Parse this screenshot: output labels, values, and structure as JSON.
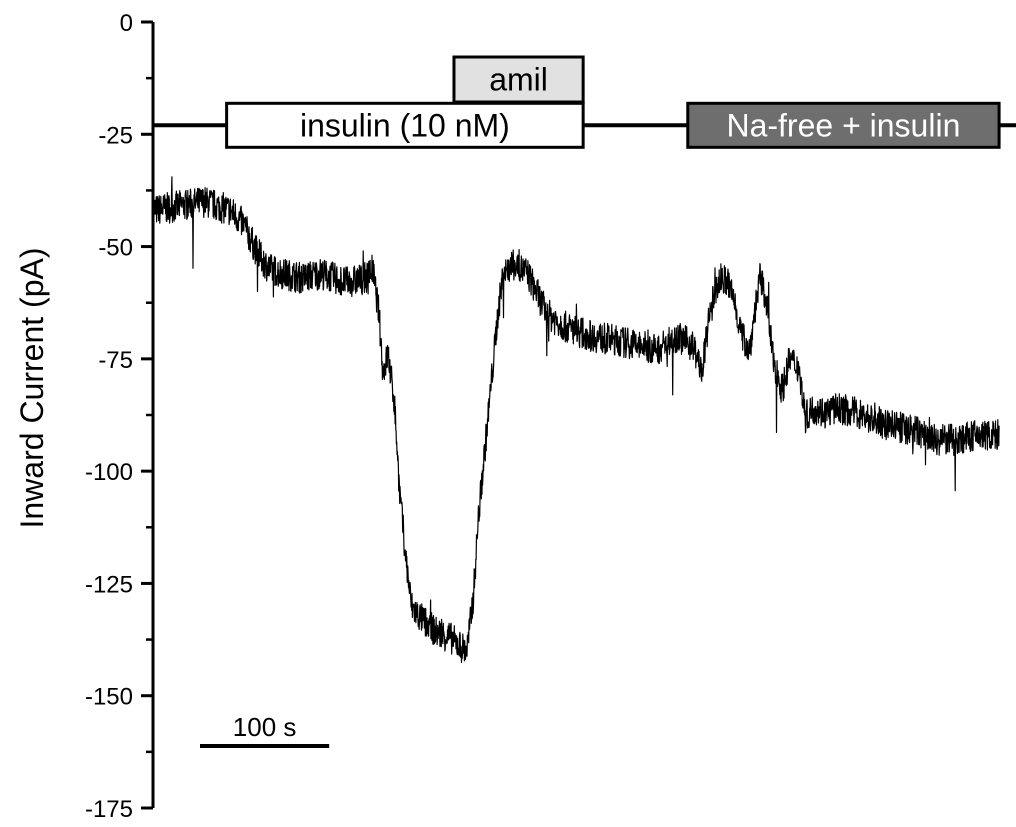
{
  "chart_data": {
    "type": "line",
    "title": "",
    "xlabel": "",
    "ylabel": "Inward Current (pA)",
    "ylim": [
      -175,
      0
    ],
    "xlim": [
      0,
      665
    ],
    "x_units": "s",
    "yticks": [
      0,
      -25,
      -50,
      -75,
      -100,
      -125,
      -150,
      -175
    ],
    "ytick_labels": [
      "0",
      "-25",
      "-50",
      "-75",
      "-100",
      "-125",
      "-150",
      "-175"
    ],
    "grid": false,
    "scale_bar": {
      "label": "100 s",
      "value": 100
    },
    "treatments": [
      {
        "label": "insulin (10 nM)",
        "start": 57,
        "end": 333,
        "style": "white"
      },
      {
        "label": "amil",
        "start": 233,
        "end": 333,
        "style": "light-gray"
      },
      {
        "label": "Na-free + insulin",
        "start": 414,
        "end": 655,
        "style": "dark-gray"
      }
    ],
    "baseline_y": -23,
    "series": [
      {
        "x": [
          0,
          20,
          40,
          60,
          70,
          80,
          90,
          100,
          115,
          130,
          150,
          165,
          170,
          175,
          178,
          182,
          187,
          191,
          196,
          200,
          205,
          212,
          220,
          230,
          238,
          243,
          248,
          252,
          257,
          262,
          267,
          271,
          275,
          280,
          290,
          305,
          320,
          340,
          360,
          375,
          390,
          405,
          418,
          425,
          430,
          435,
          440,
          445,
          450,
          456,
          462,
          466,
          470,
          475,
          480,
          487,
          493,
          500,
          505,
          512,
          520,
          530,
          545,
          560,
          575,
          590,
          605,
          620,
          640,
          655
        ],
        "y": [
          -42,
          -41,
          -40,
          -42,
          -45,
          -51,
          -55,
          -56,
          -57,
          -56,
          -58,
          -57,
          -55,
          -65,
          -78,
          -74,
          -85,
          -105,
          -120,
          -130,
          -132,
          -134,
          -136,
          -137,
          -139,
          -140,
          -128,
          -110,
          -95,
          -80,
          -65,
          -56,
          -55,
          -54,
          -56,
          -65,
          -68,
          -70,
          -71,
          -72,
          -73,
          -70,
          -72,
          -78,
          -67,
          -60,
          -57,
          -58,
          -62,
          -70,
          -73,
          -64,
          -57,
          -62,
          -75,
          -82,
          -75,
          -77,
          -88,
          -86,
          -87,
          -86,
          -87,
          -89,
          -90,
          -91,
          -93,
          -93,
          -92,
          -92
        ]
      }
    ]
  }
}
